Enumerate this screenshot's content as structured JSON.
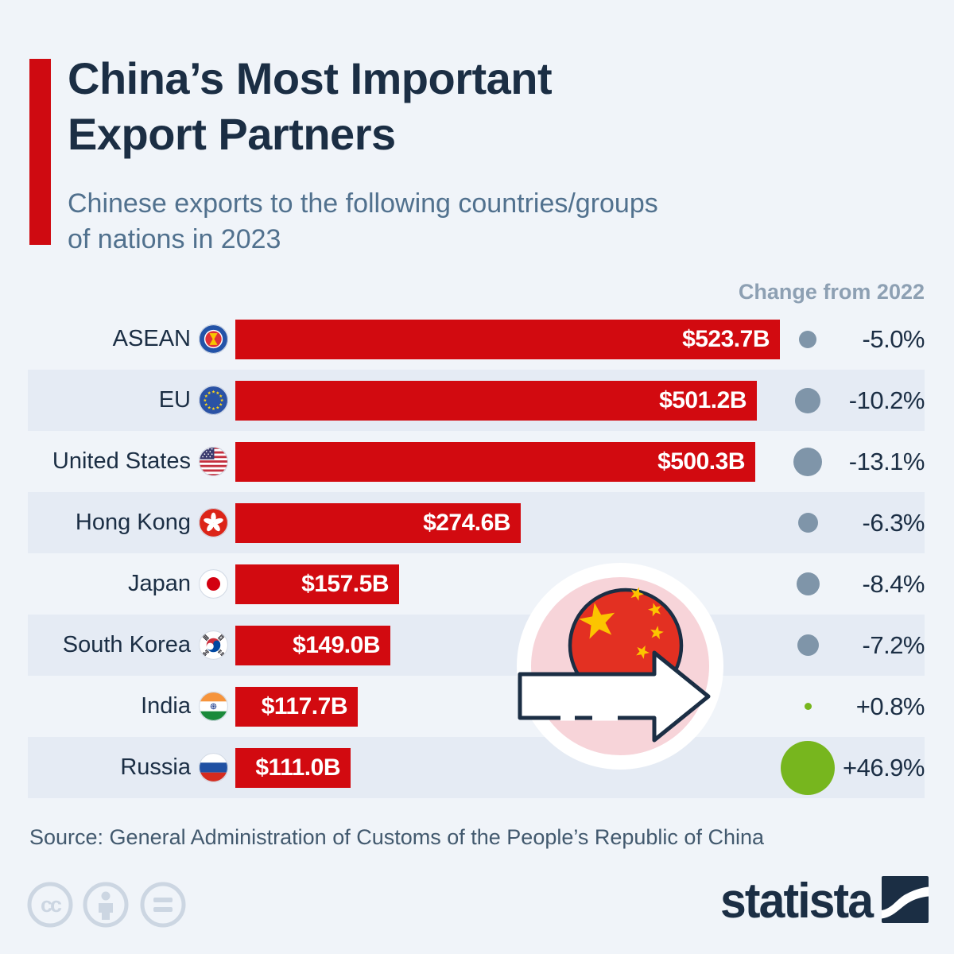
{
  "header": {
    "title_line1": "China’s Most Important",
    "title_line2": "Export Partners",
    "subtitle_line1": "Chinese exports to the following countries/groups",
    "subtitle_line2": "of nations in 2023"
  },
  "chart": {
    "change_column_header": "Change from 2022"
  },
  "chart_data": {
    "type": "bar",
    "title": "China’s Most Important Export Partners",
    "subtitle": "Chinese exports to the following countries/groups of nations in 2023",
    "unit": "USD billions",
    "orientation": "horizontal",
    "value_axis_max": 523.7,
    "categories": [
      "ASEAN",
      "EU",
      "United States",
      "Hong Kong",
      "Japan",
      "South Korea",
      "India",
      "Russia"
    ],
    "series": [
      {
        "name": "Exports 2023 (USD billions)",
        "values": [
          523.7,
          501.2,
          500.3,
          274.6,
          157.5,
          149.0,
          117.7,
          111.0
        ]
      },
      {
        "name": "Change from 2022 (%)",
        "values": [
          -5.0,
          -10.2,
          -13.1,
          -6.3,
          -8.4,
          -7.2,
          0.8,
          46.9
        ]
      }
    ],
    "rows": [
      {
        "label": "ASEAN",
        "flag": "asean",
        "value": 523.7,
        "value_label": "$523.7B",
        "change": -5.0,
        "change_label": "-5.0%"
      },
      {
        "label": "EU",
        "flag": "eu",
        "value": 501.2,
        "value_label": "$501.2B",
        "change": -10.2,
        "change_label": "-10.2%"
      },
      {
        "label": "United States",
        "flag": "us",
        "value": 500.3,
        "value_label": "$500.3B",
        "change": -13.1,
        "change_label": "-13.1%"
      },
      {
        "label": "Hong Kong",
        "flag": "hk",
        "value": 274.6,
        "value_label": "$274.6B",
        "change": -6.3,
        "change_label": "-6.3%"
      },
      {
        "label": "Japan",
        "flag": "jp",
        "value": 157.5,
        "value_label": "$157.5B",
        "change": -8.4,
        "change_label": "-8.4%"
      },
      {
        "label": "South Korea",
        "flag": "kr",
        "value": 149.0,
        "value_label": "$149.0B",
        "change": -7.2,
        "change_label": "-7.2%"
      },
      {
        "label": "India",
        "flag": "in",
        "value": 117.7,
        "value_label": "$117.7B",
        "change": 0.8,
        "change_label": "+0.8%"
      },
      {
        "label": "Russia",
        "flag": "ru",
        "value": 111.0,
        "value_label": "$111.0B",
        "change": 46.9,
        "change_label": "+46.9%"
      }
    ],
    "legend": "dot size indicates magnitude of change; green = increase, grey = decrease"
  },
  "decoration": {
    "icons": [
      "china-flag-icon",
      "export-arrow-icon"
    ]
  },
  "footer": {
    "source": "Source: General Administration of Customs of the People’s Republic of China",
    "brand": "statista",
    "license_icons": [
      "cc-icon",
      "attribution-icon",
      "equals-icon"
    ]
  },
  "colors": {
    "background": "#f0f4f9",
    "row_stripe": "#e5ebf4",
    "bar_red": "#d20a10",
    "accent_red": "#cf0a11",
    "title_navy": "#1b2e44",
    "subtitle_slate": "#51718e",
    "change_header_grey": "#8da0b3",
    "negative_dot": "#7f95a9",
    "positive_dot": "#77b61e"
  }
}
